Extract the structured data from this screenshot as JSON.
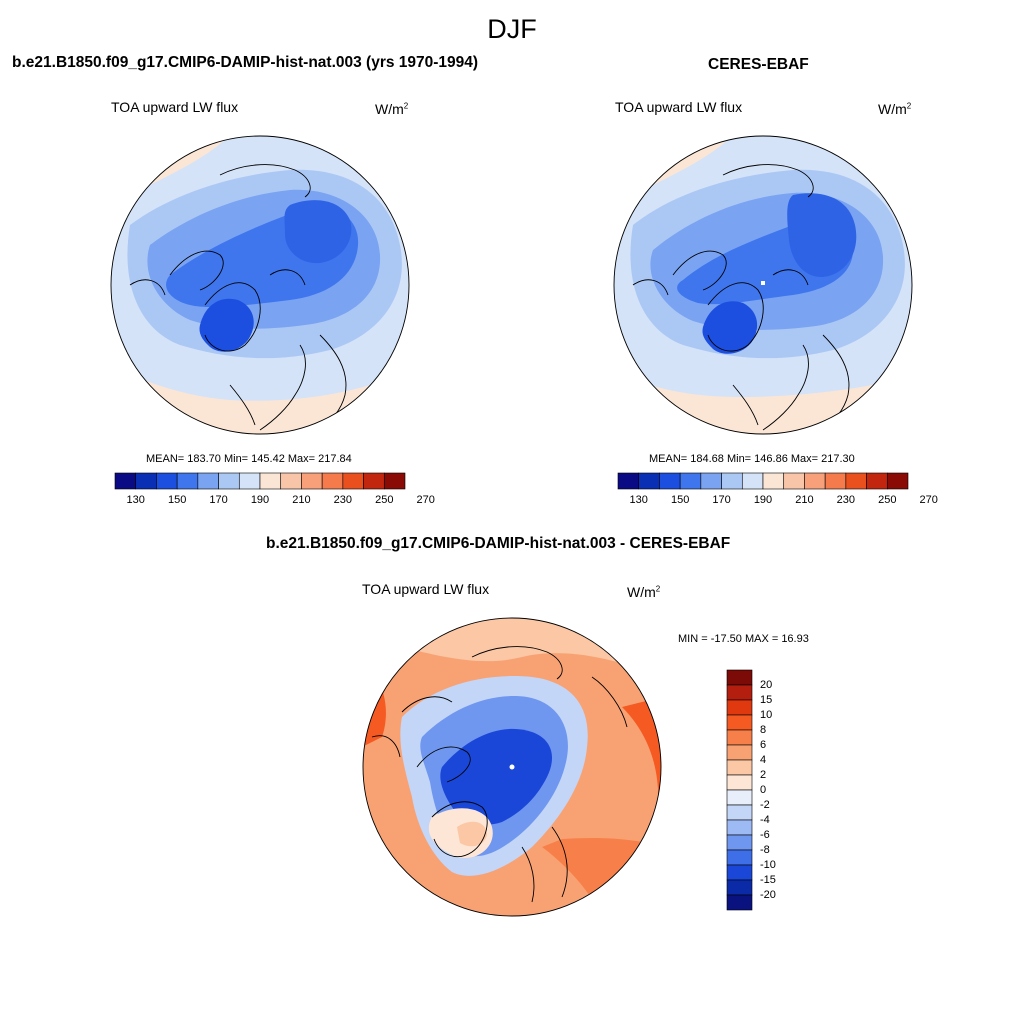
{
  "season": "DJF",
  "panels": [
    {
      "title": "b.e21.B1850.f09_g17.CMIP6-DAMIP-hist-nat.003 (yrs 1970-1994)",
      "variable": "TOA upward LW flux",
      "units": "W/m",
      "units_sup": "2",
      "stats": "MEAN= 183.70  Min= 145.42  Max= 217.84",
      "mean": 183.7,
      "min": 145.42,
      "max": 217.84
    },
    {
      "title": "CERES-EBAF",
      "variable": "TOA upward LW flux",
      "units": "W/m",
      "units_sup": "2",
      "stats": "MEAN= 184.68  Min= 146.86  Max= 217.30",
      "mean": 184.68,
      "min": 146.86,
      "max": 217.3
    },
    {
      "title": "b.e21.B1850.f09_g17.CMIP6-DAMIP-hist-nat.003 - CERES-EBAF",
      "variable": "TOA upward LW flux",
      "units": "W/m",
      "units_sup": "2",
      "stats": "MIN = -17.50 MAX =  16.93",
      "min": -17.5,
      "max": 16.93
    }
  ],
  "colorbar_top": {
    "tick_labels": [
      "130",
      "150",
      "170",
      "190",
      "210",
      "230",
      "250",
      "270"
    ],
    "colors": [
      "#0a0a85",
      "#0a2fb5",
      "#1c4fe0",
      "#3f76ee",
      "#7aa3f2",
      "#abc8f5",
      "#d4e3f8",
      "#fbe6d6",
      "#f9c5a8",
      "#f7a07a",
      "#f57a4c",
      "#ea4f1e",
      "#c3260e",
      "#8a0a06"
    ]
  },
  "colorbar_diff": {
    "tick_labels": [
      "20",
      "15",
      "10",
      "8",
      "6",
      "4",
      "2",
      "0",
      "-2",
      "-4",
      "-6",
      "-8",
      "-10",
      "-15",
      "-20"
    ],
    "colors": [
      "#7c0a06",
      "#b41e0e",
      "#e0380f",
      "#f55a22",
      "#f7804a",
      "#f8a274",
      "#fbc7a5",
      "#fde6d6",
      "#e8eefa",
      "#c3d6f7",
      "#9dbaf5",
      "#6f97f0",
      "#3e6ee8",
      "#1a47d8",
      "#0b2aa8",
      "#0a1280"
    ]
  },
  "chart_data": [
    {
      "type": "heatmap",
      "title": "b.e21.B1850.f09_g17.CMIP6-DAMIP-hist-nat.003 (yrs 1970-1994)",
      "variable": "TOA upward LW flux",
      "units": "W/m2",
      "projection": "polar stereographic (north pole)",
      "mean": 183.7,
      "min": 145.42,
      "max": 217.84,
      "contour_levels": [
        130,
        140,
        150,
        160,
        170,
        180,
        190,
        200,
        210,
        220,
        230,
        240,
        250,
        260,
        270
      ]
    },
    {
      "type": "heatmap",
      "title": "CERES-EBAF",
      "variable": "TOA upward LW flux",
      "units": "W/m2",
      "projection": "polar stereographic (north pole)",
      "mean": 184.68,
      "min": 146.86,
      "max": 217.3,
      "contour_levels": [
        130,
        140,
        150,
        160,
        170,
        180,
        190,
        200,
        210,
        220,
        230,
        240,
        250,
        260,
        270
      ]
    },
    {
      "type": "heatmap",
      "title": "b.e21.B1850.f09_g17.CMIP6-DAMIP-hist-nat.003 - CERES-EBAF",
      "variable": "TOA upward LW flux",
      "units": "W/m2",
      "projection": "polar stereographic (north pole)",
      "min": -17.5,
      "max": 16.93,
      "contour_levels": [
        -20,
        -15,
        -10,
        -8,
        -6,
        -4,
        -2,
        0,
        2,
        4,
        6,
        8,
        10,
        15,
        20
      ]
    }
  ]
}
